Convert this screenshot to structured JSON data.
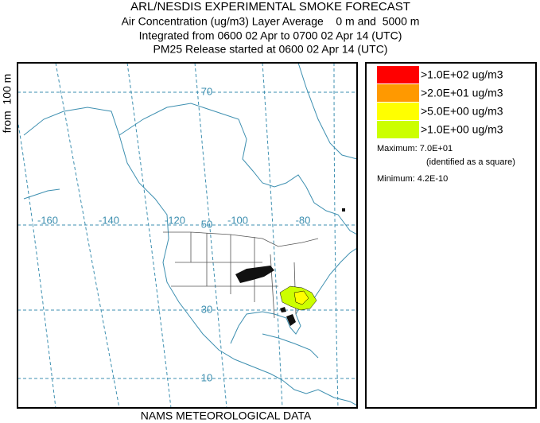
{
  "header": {
    "title": "ARL/NESDIS EXPERIMENTAL SMOKE FORECAST",
    "line1": "Air Concentration (ug/m3) Layer Average    0 m and  5000 m",
    "line2": "Integrated from 0600 02 Apr to 0700 02 Apr 14 (UTC)",
    "line3": "PM25 Release started at 0600 02 Apr 14 (UTC)"
  },
  "side_label": "from  100 m",
  "footer": "NAMS METEOROLOGICAL DATA",
  "map": {
    "longitudes": [
      -160,
      -140,
      -120,
      -100,
      -80
    ],
    "latitudes": [
      70,
      50,
      30,
      10
    ]
  },
  "legend": {
    "entries": [
      {
        "label": ">1.0E+02 ug/m3",
        "color": "#ff0000"
      },
      {
        "label": ">2.0E+01 ug/m3",
        "color": "#ff9900"
      },
      {
        "label": ">5.0E+00 ug/m3",
        "color": "#ffff00"
      },
      {
        "label": ">1.0E+00 ug/m3",
        "color": "#ccff00"
      }
    ],
    "maximum": "Maximum: 7.0E+01",
    "maximum_note": "(identified as a square)",
    "minimum": "Minimum: 4.2E-10"
  }
}
